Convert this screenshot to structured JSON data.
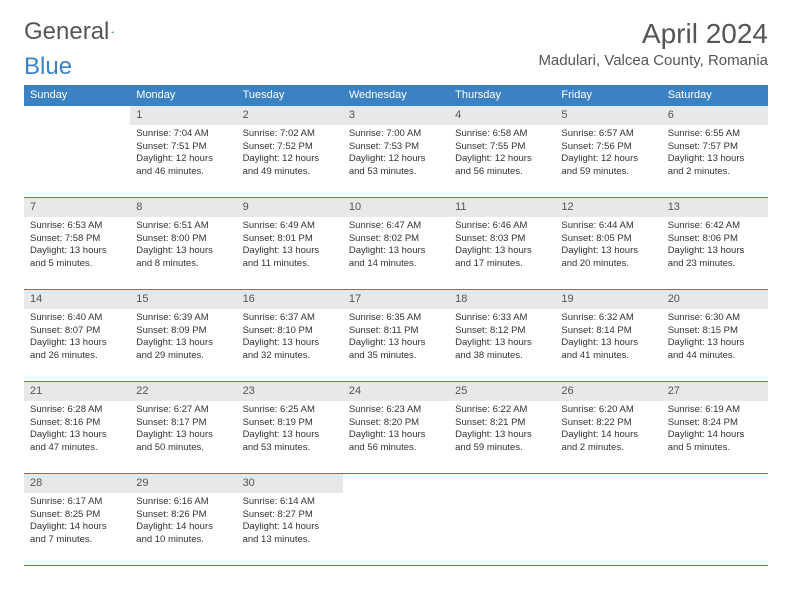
{
  "logo": {
    "text1": "General",
    "text2": "Blue"
  },
  "title": "April 2024",
  "location": "Madulari, Valcea County, Romania",
  "colors": {
    "header_bg": "#3b82c4",
    "header_text": "#ffffff",
    "daynum_bg": "#e8e8e8",
    "border": "#3b82c4",
    "text": "#333333"
  },
  "weekdays": [
    "Sunday",
    "Monday",
    "Tuesday",
    "Wednesday",
    "Thursday",
    "Friday",
    "Saturday"
  ],
  "weeks": [
    [
      null,
      {
        "n": "1",
        "sr": "7:04 AM",
        "ss": "7:51 PM",
        "dl": "12 hours and 46 minutes."
      },
      {
        "n": "2",
        "sr": "7:02 AM",
        "ss": "7:52 PM",
        "dl": "12 hours and 49 minutes."
      },
      {
        "n": "3",
        "sr": "7:00 AM",
        "ss": "7:53 PM",
        "dl": "12 hours and 53 minutes."
      },
      {
        "n": "4",
        "sr": "6:58 AM",
        "ss": "7:55 PM",
        "dl": "12 hours and 56 minutes."
      },
      {
        "n": "5",
        "sr": "6:57 AM",
        "ss": "7:56 PM",
        "dl": "12 hours and 59 minutes."
      },
      {
        "n": "6",
        "sr": "6:55 AM",
        "ss": "7:57 PM",
        "dl": "13 hours and 2 minutes."
      }
    ],
    [
      {
        "n": "7",
        "sr": "6:53 AM",
        "ss": "7:58 PM",
        "dl": "13 hours and 5 minutes."
      },
      {
        "n": "8",
        "sr": "6:51 AM",
        "ss": "8:00 PM",
        "dl": "13 hours and 8 minutes."
      },
      {
        "n": "9",
        "sr": "6:49 AM",
        "ss": "8:01 PM",
        "dl": "13 hours and 11 minutes."
      },
      {
        "n": "10",
        "sr": "6:47 AM",
        "ss": "8:02 PM",
        "dl": "13 hours and 14 minutes."
      },
      {
        "n": "11",
        "sr": "6:46 AM",
        "ss": "8:03 PM",
        "dl": "13 hours and 17 minutes."
      },
      {
        "n": "12",
        "sr": "6:44 AM",
        "ss": "8:05 PM",
        "dl": "13 hours and 20 minutes."
      },
      {
        "n": "13",
        "sr": "6:42 AM",
        "ss": "8:06 PM",
        "dl": "13 hours and 23 minutes."
      }
    ],
    [
      {
        "n": "14",
        "sr": "6:40 AM",
        "ss": "8:07 PM",
        "dl": "13 hours and 26 minutes."
      },
      {
        "n": "15",
        "sr": "6:39 AM",
        "ss": "8:09 PM",
        "dl": "13 hours and 29 minutes."
      },
      {
        "n": "16",
        "sr": "6:37 AM",
        "ss": "8:10 PM",
        "dl": "13 hours and 32 minutes."
      },
      {
        "n": "17",
        "sr": "6:35 AM",
        "ss": "8:11 PM",
        "dl": "13 hours and 35 minutes."
      },
      {
        "n": "18",
        "sr": "6:33 AM",
        "ss": "8:12 PM",
        "dl": "13 hours and 38 minutes."
      },
      {
        "n": "19",
        "sr": "6:32 AM",
        "ss": "8:14 PM",
        "dl": "13 hours and 41 minutes."
      },
      {
        "n": "20",
        "sr": "6:30 AM",
        "ss": "8:15 PM",
        "dl": "13 hours and 44 minutes."
      }
    ],
    [
      {
        "n": "21",
        "sr": "6:28 AM",
        "ss": "8:16 PM",
        "dl": "13 hours and 47 minutes."
      },
      {
        "n": "22",
        "sr": "6:27 AM",
        "ss": "8:17 PM",
        "dl": "13 hours and 50 minutes."
      },
      {
        "n": "23",
        "sr": "6:25 AM",
        "ss": "8:19 PM",
        "dl": "13 hours and 53 minutes."
      },
      {
        "n": "24",
        "sr": "6:23 AM",
        "ss": "8:20 PM",
        "dl": "13 hours and 56 minutes."
      },
      {
        "n": "25",
        "sr": "6:22 AM",
        "ss": "8:21 PM",
        "dl": "13 hours and 59 minutes."
      },
      {
        "n": "26",
        "sr": "6:20 AM",
        "ss": "8:22 PM",
        "dl": "14 hours and 2 minutes."
      },
      {
        "n": "27",
        "sr": "6:19 AM",
        "ss": "8:24 PM",
        "dl": "14 hours and 5 minutes."
      }
    ],
    [
      {
        "n": "28",
        "sr": "6:17 AM",
        "ss": "8:25 PM",
        "dl": "14 hours and 7 minutes."
      },
      {
        "n": "29",
        "sr": "6:16 AM",
        "ss": "8:26 PM",
        "dl": "14 hours and 10 minutes."
      },
      {
        "n": "30",
        "sr": "6:14 AM",
        "ss": "8:27 PM",
        "dl": "14 hours and 13 minutes."
      },
      null,
      null,
      null,
      null
    ]
  ],
  "labels": {
    "sunrise": "Sunrise: ",
    "sunset": "Sunset: ",
    "daylight": "Daylight: "
  }
}
